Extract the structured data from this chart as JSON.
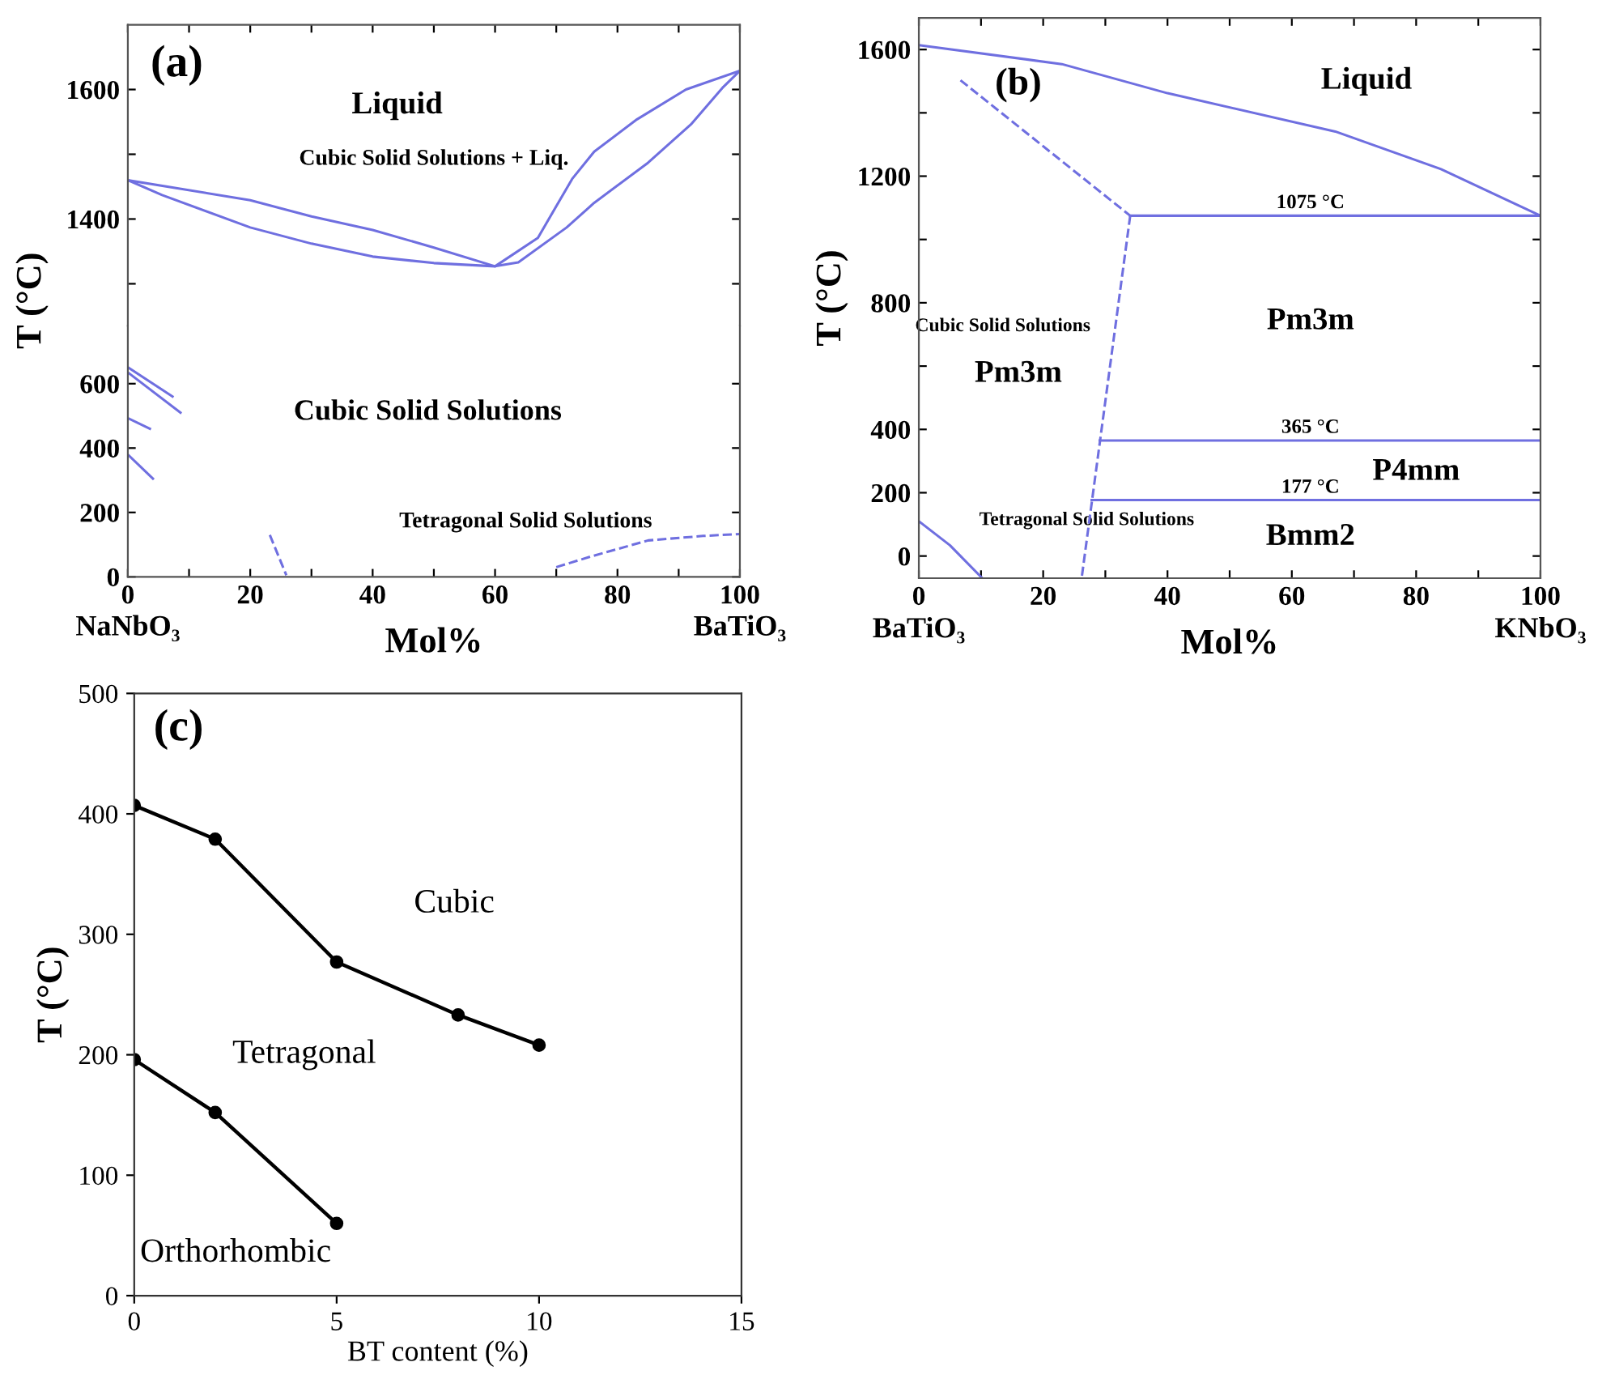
{
  "chart_data": [
    {
      "type": "line",
      "ylabel": null,
      "xlim": [
        0,
        100
      ],
      "ylim": [
        1235,
        1700
      ],
      "xticks": [
        0,
        {
          "value": 10,
          "label": null
        },
        20,
        {
          "value": 30,
          "label": null
        },
        40,
        {
          "value": 50,
          "label": null
        },
        60,
        {
          "value": 70,
          "label": null
        },
        80,
        {
          "value": 90,
          "label": null
        },
        100
      ],
      "yticks": [
        {
          "value": 1300,
          "label": null
        },
        1400,
        {
          "value": 1500,
          "label": null
        },
        1600
      ],
      "tick_labels": "y",
      "series": [
        {
          "color": "#6f6fe0",
          "line_style": "solid",
          "x": [
            0,
            20,
            30,
            40,
            50,
            60,
            67,
            72.6,
            76.2,
            83.2,
            91.2,
            100
          ],
          "values": [
            1460,
            1429,
            1404,
            1383,
            1356,
            1327,
            1371,
            1462,
            1504,
            1554,
            1600,
            1629
          ]
        },
        {
          "color": "#6f6fe0",
          "line_style": "solid",
          "x": [
            0,
            5.6,
            20,
            30,
            40,
            50,
            60,
            63.8,
            71.7,
            76.2,
            85,
            92,
            97.3,
            100
          ],
          "values": [
            1460,
            1437,
            1387,
            1362,
            1342,
            1332,
            1327,
            1333,
            1387,
            1425,
            1487,
            1546,
            1604,
            1629
          ]
        }
      ],
      "annotations": [
        "(a)",
        "Liquid",
        "Cubic Solid Solutions + Liq."
      ]
    },
    {
      "type": "line",
      "xlabel": "Mol%",
      "ylabel": "T (°C)",
      "xlim": [
        0,
        100
      ],
      "ylim": [
        0,
        780
      ],
      "xticks": [
        0,
        {
          "value": 10,
          "label": null
        },
        20,
        {
          "value": 30,
          "label": null
        },
        40,
        {
          "value": 50,
          "label": null
        },
        60,
        {
          "value": 70,
          "label": null
        },
        80,
        {
          "value": 90,
          "label": null
        },
        100
      ],
      "yticks": [
        0,
        200,
        400,
        600
      ],
      "series": [
        {
          "color": "#6f6fe0",
          "line_style": "dashed",
          "x": [
            70,
            76,
            85,
            94,
            100
          ],
          "values": [
            30,
            65,
            113,
            127,
            133
          ]
        },
        {
          "color": "#6f6fe0",
          "line_style": "dashed",
          "x": [
            23.2,
            25.9
          ],
          "values": [
            130,
            5
          ]
        },
        {
          "color": "#6f6fe0",
          "line_style": "solid",
          "x": [
            0,
            7.3
          ],
          "values": [
            651,
            560
          ]
        },
        {
          "color": "#6f6fe0",
          "line_style": "solid",
          "x": [
            0,
            8.6
          ],
          "values": [
            635,
            510
          ]
        },
        {
          "color": "#6f6fe0",
          "line_style": "solid",
          "x": [
            0,
            3.6
          ],
          "values": [
            493,
            460
          ]
        },
        {
          "color": "#6f6fe0",
          "line_style": "solid",
          "x": [
            0,
            4.1
          ],
          "values": [
            380,
            305
          ]
        }
      ],
      "annotations": [
        "Cubic Solid Solutions",
        "Tetragonal Solid Solutions",
        "NaNbO₃",
        "BaTiO₃"
      ]
    },
    {
      "type": "line",
      "xlabel": "Mol%",
      "ylabel": "T (°C)",
      "xlim": [
        0,
        100
      ],
      "ylim": [
        -70,
        1700
      ],
      "xticks": [
        0,
        {
          "value": 10,
          "label": null
        },
        20,
        {
          "value": 30,
          "label": null
        },
        40,
        {
          "value": 50,
          "label": null
        },
        60,
        {
          "value": 70,
          "label": null
        },
        80,
        {
          "value": 90,
          "label": null
        },
        100
      ],
      "yticks": [
        0,
        200,
        400,
        {
          "value": 600,
          "label": null
        },
        800,
        {
          "value": 1000,
          "label": null
        },
        1200,
        {
          "value": 1400,
          "label": null
        },
        1600
      ],
      "series": [
        {
          "color": "#6f6fe0",
          "line_style": "solid",
          "x": [
            0,
            23,
            40,
            67,
            84,
            100
          ],
          "values": [
            1614,
            1554,
            1462,
            1341,
            1222,
            1075
          ]
        },
        {
          "color": "#6f6fe0",
          "line_style": "solid",
          "x": [
            34,
            100
          ],
          "values": [
            1075,
            1075
          ]
        },
        {
          "color": "#6f6fe0",
          "line_style": "dashed",
          "x": [
            6.7,
            34
          ],
          "values": [
            1503,
            1075
          ]
        },
        {
          "color": "#6f6fe0",
          "line_style": "dashed",
          "x": [
            34,
            26.2
          ],
          "values": [
            1075,
            -68
          ]
        },
        {
          "color": "#6f6fe0",
          "line_style": "solid",
          "x": [
            29.1,
            100
          ],
          "values": [
            365,
            365
          ]
        },
        {
          "color": "#6f6fe0",
          "line_style": "solid",
          "x": [
            27.8,
            100
          ],
          "values": [
            177,
            177
          ]
        },
        {
          "color": "#6f6fe0",
          "line_style": "solid",
          "x": [
            0,
            5,
            10.2
          ],
          "values": [
            110,
            34,
            -70
          ]
        }
      ],
      "annotations": [
        "(b)",
        "Liquid",
        "1075 °C",
        "Cubic Solid Solutions",
        "Pm3m",
        "Pm3m",
        "365 °C",
        "P4mm",
        "177 °C",
        "Bmm2",
        "Tetragonal Solid Solutions",
        "BaTiO₃",
        "KNbO₃"
      ]
    },
    {
      "type": "line",
      "xlabel": "BT content (%)",
      "ylabel": "T (°C)",
      "xlim": [
        0,
        15
      ],
      "ylim": [
        0,
        500
      ],
      "xticks": [
        0,
        5,
        10,
        15
      ],
      "yticks": [
        0,
        100,
        200,
        300,
        400,
        500
      ],
      "marker": "circle",
      "series": [
        {
          "color": "#000000",
          "line_style": "solid",
          "x": [
            0,
            2,
            5,
            8,
            10
          ],
          "values": [
            407,
            379,
            277,
            233,
            208
          ]
        },
        {
          "color": "#000000",
          "line_style": "solid",
          "x": [
            0,
            2,
            5
          ],
          "values": [
            196,
            152,
            60
          ]
        }
      ],
      "annotations": [
        "(c)",
        "Cubic",
        "Tetragonal",
        "Orthorhombic"
      ]
    }
  ]
}
